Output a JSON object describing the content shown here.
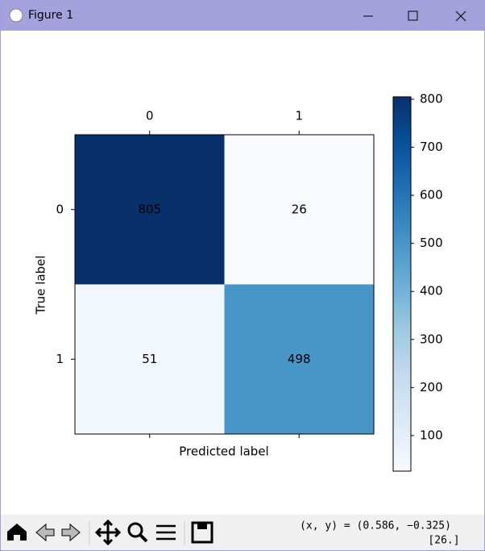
{
  "window": {
    "title": "Figure 1"
  },
  "chart_data": {
    "type": "heatmap",
    "x_categories": [
      "0",
      "1"
    ],
    "y_categories": [
      "0",
      "1"
    ],
    "values": [
      [
        805,
        26
      ],
      [
        51,
        498
      ]
    ],
    "xlabel": "Predicted label",
    "ylabel": "True label",
    "cmap": "Blues",
    "colorbar": {
      "lim": [
        26,
        805
      ],
      "ticks": [
        100,
        200,
        300,
        400,
        500,
        600,
        700,
        800
      ]
    }
  },
  "status": {
    "coords": "(x, y) = (0.586, −0.325)",
    "value": "[26.]"
  }
}
